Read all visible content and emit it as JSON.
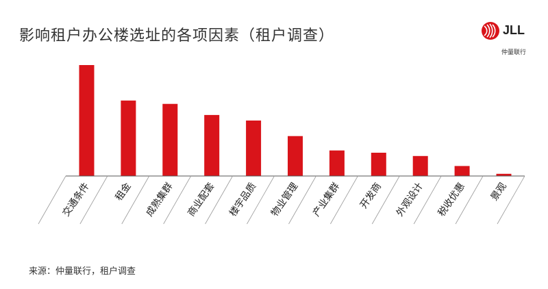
{
  "title": "影响租户办公楼选址的各项因素（租户调查）",
  "logo": {
    "brand": "JLL",
    "brand_cn": "仲量联行"
  },
  "source": "来源：仲量联行，租户调查",
  "colors": {
    "bar": "#d9141a",
    "axis": "#555555",
    "text": "#333333"
  },
  "chart_data": {
    "type": "bar",
    "title": "影响租户办公楼选址的各项因素（租户调查）",
    "xlabel": "",
    "ylabel": "",
    "categories": [
      "交通条件",
      "租金",
      "成熟集群",
      "商业配套",
      "楼宇品质",
      "物业管理",
      "产业集群",
      "开发商",
      "外观设计",
      "税收优惠",
      "景观"
    ],
    "values": [
      100,
      68,
      65,
      55,
      50,
      36,
      23,
      21,
      18,
      9,
      2
    ],
    "ylim": [
      0,
      100
    ],
    "grid": false,
    "legend": "none"
  }
}
